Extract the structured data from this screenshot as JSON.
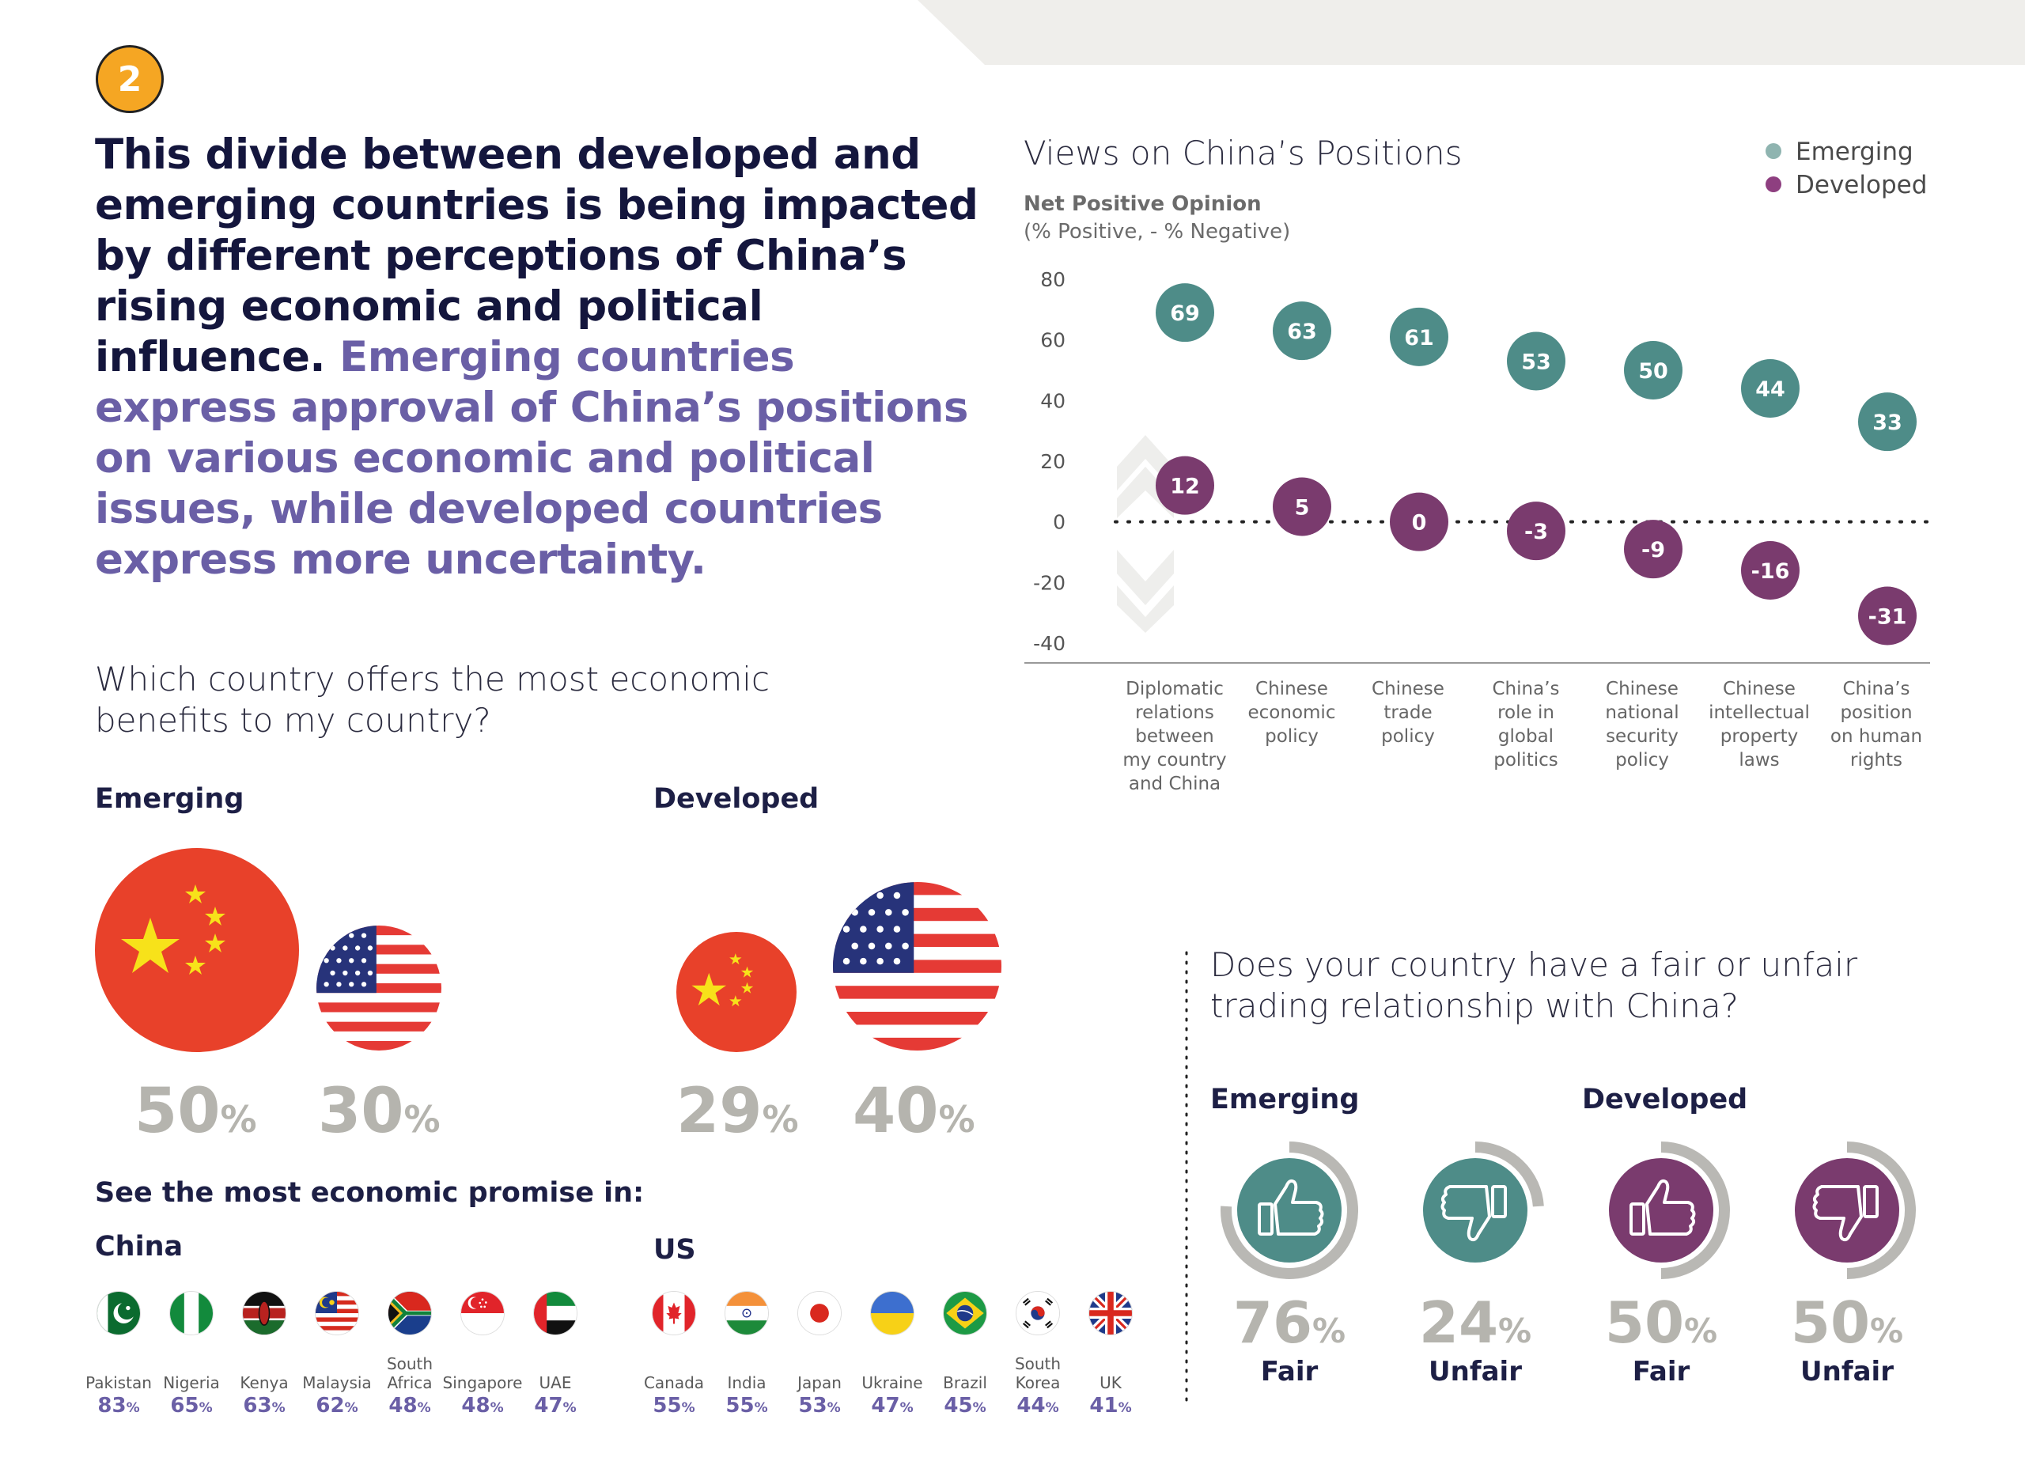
{
  "badge_number": "2",
  "headline": {
    "dark": "This divide between developed and emerging countries is being impacted by different perceptions of China’s rising economic and political influence.",
    "purple": "Emerging countries express approval of China’s positions on various economic and political issues, while developed countries express more uncertainty."
  },
  "benefits": {
    "question": "Which country offers the most economic benefits to my country?",
    "emerging": {
      "label": "Emerging",
      "china_value": "50",
      "us_value": "30",
      "unit": "%"
    },
    "developed": {
      "label": "Developed",
      "china_value": "29",
      "us_value": "40",
      "unit": "%"
    },
    "promise_title": "See the most economic promise in:",
    "china_group": {
      "label": "China",
      "countries": [
        {
          "name": "Pakistan",
          "value": "83",
          "flag": "pakistan-flag-icon"
        },
        {
          "name": "Nigeria",
          "value": "65",
          "flag": "nigeria-flag-icon"
        },
        {
          "name": "Kenya",
          "value": "63",
          "flag": "kenya-flag-icon"
        },
        {
          "name": "Malaysia",
          "value": "62",
          "flag": "malaysia-flag-icon"
        },
        {
          "name": "South Africa",
          "value": "48",
          "flag": "south-africa-flag-icon"
        },
        {
          "name": "Singapore",
          "value": "48",
          "flag": "singapore-flag-icon"
        },
        {
          "name": "UAE",
          "value": "47",
          "flag": "uae-flag-icon"
        }
      ]
    },
    "us_group": {
      "label": "US",
      "countries": [
        {
          "name": "Canada",
          "value": "55",
          "flag": "canada-flag-icon"
        },
        {
          "name": "India",
          "value": "55",
          "flag": "india-flag-icon"
        },
        {
          "name": "Japan",
          "value": "53",
          "flag": "japan-flag-icon"
        },
        {
          "name": "Ukraine",
          "value": "47",
          "flag": "ukraine-flag-icon"
        },
        {
          "name": "Brazil",
          "value": "45",
          "flag": "brazil-flag-icon"
        },
        {
          "name": "South Korea",
          "value": "44",
          "flag": "south-korea-flag-icon"
        },
        {
          "name": "UK",
          "value": "41",
          "flag": "uk-flag-icon"
        }
      ]
    },
    "pct_symbol": "%"
  },
  "chart_data": {
    "type": "scatter",
    "title": "Views on China’s Positions",
    "ylabel": "Net Positive Opinion",
    "ylabel_sub": "(% Positive, - % Negative)",
    "ylim": [
      -40,
      80
    ],
    "yticks": [
      80,
      60,
      40,
      20,
      0,
      -20,
      -40
    ],
    "legend_position": "top-right",
    "categories": [
      "Diplomatic relations between my country and China",
      "Chinese economic policy",
      "Chinese trade policy",
      "China’s role in global politics",
      "Chinese national security policy",
      "Chinese intellectual property laws",
      "China’s position on human rights"
    ],
    "category_lines": [
      [
        "Diplomatic",
        "relations",
        "between",
        "my country",
        "and China"
      ],
      [
        "Chinese",
        "economic",
        "policy"
      ],
      [
        "Chinese",
        "trade",
        "policy"
      ],
      [
        "China’s",
        "role in",
        "global",
        "politics"
      ],
      [
        "Chinese",
        "national",
        "security",
        "policy"
      ],
      [
        "Chinese",
        "intellectual",
        "property",
        "laws"
      ],
      [
        "China’s",
        "position",
        "on human",
        "rights"
      ]
    ],
    "series": [
      {
        "name": "Emerging",
        "color": "#4e8c88",
        "legend_color": "#8fb4b0",
        "values": [
          69,
          63,
          61,
          53,
          50,
          44,
          33
        ]
      },
      {
        "name": "Developed",
        "color": "#7a3b6e",
        "legend_color": "#8e3f80",
        "values": [
          12,
          5,
          0,
          -3,
          -9,
          -16,
          -31
        ]
      }
    ]
  },
  "trade": {
    "question": "Does your country have a fair or unfair trading relationship with China?",
    "emerging_label": "Emerging",
    "developed_label": "Developed",
    "items": [
      {
        "group": "Emerging",
        "value": 76,
        "display": "76",
        "label": "Fair",
        "icon": "thumbs-up-icon",
        "color": "#4e8c88"
      },
      {
        "group": "Emerging",
        "value": 24,
        "display": "24",
        "label": "Unfair",
        "icon": "thumbs-down-icon",
        "color": "#4e8c88"
      },
      {
        "group": "Developed",
        "value": 50,
        "display": "50",
        "label": "Fair",
        "icon": "thumbs-up-icon",
        "color": "#7a3b6e"
      },
      {
        "group": "Developed",
        "value": 50,
        "display": "50",
        "label": "Unfair",
        "icon": "thumbs-down-icon",
        "color": "#7a3b6e"
      }
    ],
    "pct_symbol": "%"
  },
  "colors": {
    "emerging": "#4e8c88",
    "developed": "#7a3b6e",
    "accent_purple": "#6a5fa6",
    "badge": "#f5a623",
    "china_red": "#e8412a",
    "gray_pct": "#b5b4ae"
  }
}
